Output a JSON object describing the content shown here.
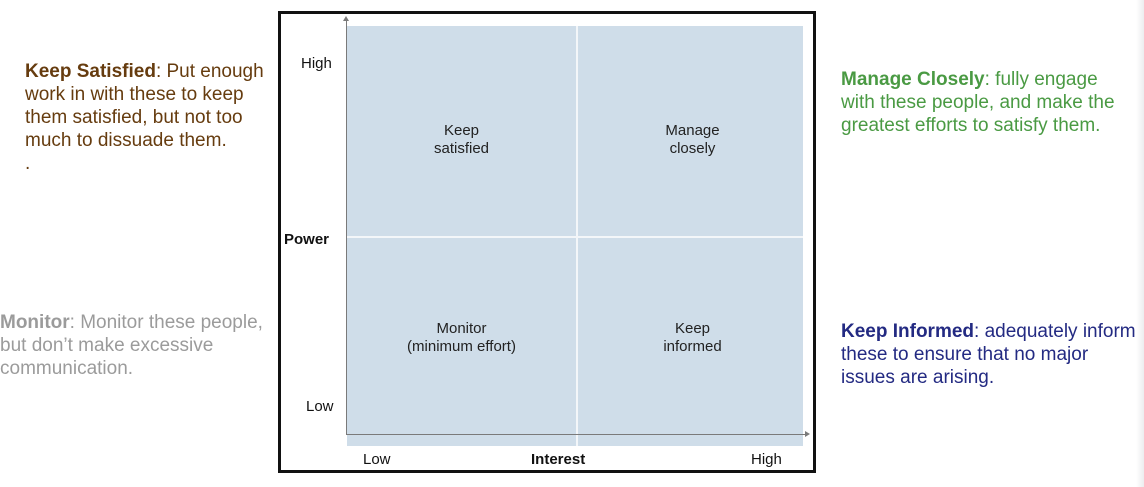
{
  "notes": {
    "keep_satisfied": {
      "title": "Keep Satisfied",
      "text": ": Put enough work in with these to keep them satisfied, but not too much to dissuade them.",
      "trailing": ".",
      "color": "#663c0f"
    },
    "monitor": {
      "title": "Monitor",
      "text": ": Monitor these people, but don’t make excessive communication.",
      "color": "#9b9b9b"
    },
    "manage_closely": {
      "title": "Manage Closely",
      "text": ": fully engage with these people, and make the greatest efforts to satisfy them.",
      "color": "#4a9a43"
    },
    "keep_informed": {
      "title": "Keep Informed",
      "text": ": adequately inform these to ensure that no major issues are arising.",
      "color": "#232a82"
    }
  },
  "matrix": {
    "quadrants": {
      "top_left": {
        "line1": "Keep",
        "line2": "satisfied"
      },
      "top_right": {
        "line1": "Manage",
        "line2": "closely"
      },
      "bottom_left": {
        "line1": "Monitor",
        "line2": "(minimum effort)"
      },
      "bottom_right": {
        "line1": "Keep",
        "line2": "informed"
      }
    },
    "y_axis": {
      "title": "Power",
      "high": "High",
      "low": "Low"
    },
    "x_axis": {
      "title": "Interest",
      "low": "Low",
      "high": "High"
    },
    "fill_color": "#cfdde9"
  }
}
